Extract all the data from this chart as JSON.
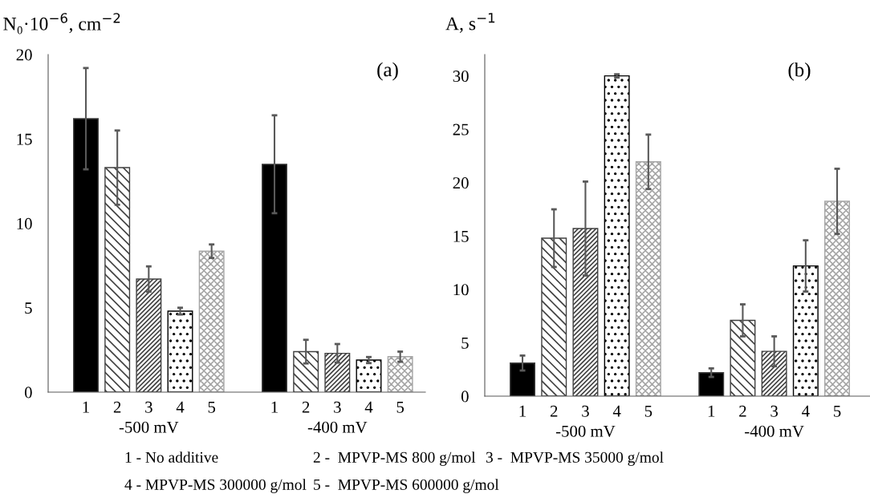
{
  "chart_data": [
    {
      "type": "bar",
      "ylabel": "N₀·10$^{−6}$, cm$^{−2}$",
      "categories": [
        "1",
        "2",
        "3",
        "4",
        "5",
        null,
        "1",
        "2",
        "3",
        "4",
        "5"
      ],
      "values": [
        16.2,
        13.3,
        6.7,
        4.8,
        8.35,
        null,
        13.5,
        2.4,
        2.3,
        1.9,
        2.1
      ],
      "errors": [
        3.0,
        2.2,
        0.75,
        0.2,
        0.4,
        null,
        2.9,
        0.7,
        0.55,
        0.18,
        0.3
      ],
      "colors": [
        "#000000",
        "#404040",
        "#404040",
        "#000000",
        "#a6a6a6",
        null,
        "#000000",
        "#404040",
        "#404040",
        "#000000",
        "#a6a6a6"
      ],
      "ylim": [
        0,
        20
      ],
      "yticks": [
        0,
        5,
        10,
        15,
        20
      ],
      "grid": false,
      "legend": false,
      "annotations": [
        "(a)",
        "-500 mV",
        "-400 mV",
        "1 - No additive",
        "2 -  MPVP-MS 800 g/mol",
        "3 -  MPVP-MS 35000 g/mol",
        "4 - MPVP-MS 300000 g/mol",
        "5 -  MPVP-MS 600000 g/mol"
      ]
    },
    {
      "type": "bar",
      "ylabel": "A, s$^{−1}$",
      "categories": [
        "1",
        "2",
        "3",
        "4",
        "5",
        null,
        "1",
        "2",
        "3",
        "4",
        "5"
      ],
      "values": [
        3.1,
        14.8,
        15.7,
        30.0,
        21.95,
        null,
        2.2,
        7.1,
        4.2,
        12.2,
        18.25
      ],
      "errors": [
        0.7,
        2.7,
        4.4,
        0.15,
        2.55,
        null,
        0.4,
        1.5,
        1.4,
        2.4,
        3.05
      ],
      "colors": [
        "#000000",
        "#404040",
        "#404040",
        "#000000",
        "#a6a6a6",
        null,
        "#000000",
        "#404040",
        "#404040",
        "#000000",
        "#a6a6a6"
      ],
      "ylim": [
        0,
        32
      ],
      "yticks": [
        0,
        5,
        10,
        15,
        20,
        25,
        30
      ],
      "grid": false,
      "legend": false,
      "annotations": [
        "(b)",
        "-500 mV",
        "-400 mV"
      ]
    }
  ]
}
